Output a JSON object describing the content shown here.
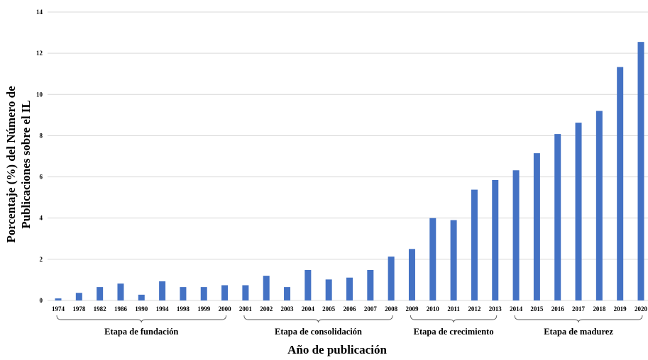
{
  "chart_data": {
    "type": "bar",
    "categories": [
      "1974",
      "1978",
      "1982",
      "1986",
      "1990",
      "1994",
      "1998",
      "1999",
      "2000",
      "2001",
      "2002",
      "2003",
      "2004",
      "2005",
      "2006",
      "2007",
      "2008",
      "2009",
      "2010",
      "2011",
      "2012",
      "2013",
      "2014",
      "2015",
      "2016",
      "2017",
      "2018",
      "2019",
      "2020"
    ],
    "values": [
      0.1,
      0.37,
      0.65,
      0.82,
      0.28,
      0.93,
      0.65,
      0.65,
      0.74,
      0.74,
      1.2,
      0.65,
      1.48,
      1.02,
      1.11,
      1.48,
      2.13,
      2.5,
      4.0,
      3.9,
      5.38,
      5.85,
      6.32,
      7.15,
      8.08,
      8.63,
      9.2,
      11.33,
      12.55
    ],
    "ylabel_line1": "Porcentaje (%) del Número de",
    "ylabel_line2": "Publicaciones sobre el IL",
    "xlabel": "Año de publicación",
    "ylim": [
      0,
      14
    ],
    "yticks": [
      "0",
      "2",
      "4",
      "6",
      "8",
      "10",
      "12",
      "14"
    ],
    "grid": true,
    "bar_color": "#4472C4",
    "grid_color": "#d9d9d9",
    "stages": [
      {
        "label": "Etapa de fundación",
        "from": 0,
        "to": 8
      },
      {
        "label": "Etapa de consolidación",
        "from": 9,
        "to": 16
      },
      {
        "label": "Etapa de crecimiento",
        "from": 17,
        "to": 21
      },
      {
        "label": "Etapa de madurez",
        "from": 22,
        "to": 28
      }
    ]
  }
}
